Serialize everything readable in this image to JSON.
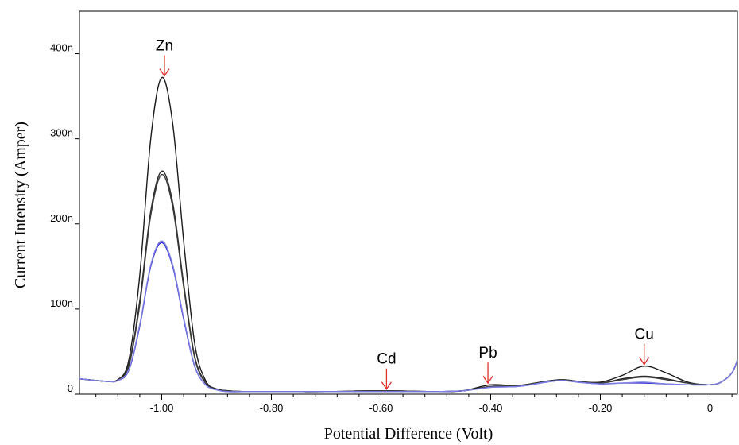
{
  "chart_data": {
    "type": "line",
    "title": "",
    "xlabel": "Potential Difference (Volt)",
    "ylabel": "Current Intensity (Amper)",
    "xlim": [
      -1.15,
      0.05
    ],
    "ylim": [
      0,
      450
    ],
    "x_ticks": [
      -1.0,
      -0.8,
      -0.6,
      -0.4,
      -0.2,
      0
    ],
    "x_tick_labels": [
      "-1.00",
      "-0.80",
      "-0.60",
      "-0.40",
      "-0.20",
      "0"
    ],
    "y_ticks": [
      0,
      100,
      200,
      300,
      400
    ],
    "y_tick_labels": [
      "0",
      "100n",
      "200n",
      "300n",
      "400n"
    ],
    "grid": false,
    "legend": "none",
    "x": [
      -1.15,
      -1.1,
      -1.08,
      -1.06,
      -1.04,
      -1.02,
      -1.0,
      -0.98,
      -0.96,
      -0.94,
      -0.92,
      -0.9,
      -0.88,
      -0.85,
      -0.8,
      -0.7,
      -0.6,
      -0.5,
      -0.45,
      -0.4,
      -0.35,
      -0.3,
      -0.27,
      -0.24,
      -0.2,
      -0.16,
      -0.12,
      -0.08,
      -0.04,
      0.0,
      0.02,
      0.04,
      0.05
    ],
    "series": [
      {
        "color": "#1a1a1a",
        "values": [
          18,
          15,
          17,
          40,
          140,
          300,
          372,
          318,
          180,
          60,
          16,
          6,
          4,
          3,
          3,
          3,
          4,
          3,
          4,
          11,
          10,
          15,
          17,
          15,
          14,
          22,
          33,
          25,
          14,
          11,
          14,
          25,
          40
        ]
      },
      {
        "color": "#2a2a2a",
        "values": [
          18,
          15,
          17,
          35,
          110,
          215,
          262,
          225,
          130,
          45,
          14,
          6,
          4,
          3,
          3,
          3,
          4,
          3,
          4,
          9,
          10,
          15,
          17,
          15,
          13,
          18,
          21,
          18,
          13,
          11,
          14,
          25,
          40
        ]
      },
      {
        "color": "#3a3a3a",
        "values": [
          18,
          15,
          17,
          33,
          105,
          210,
          258,
          220,
          126,
          43,
          13,
          6,
          4,
          3,
          3,
          3,
          4,
          3,
          4,
          9,
          10,
          15,
          17,
          15,
          13,
          17,
          20,
          17,
          13,
          11,
          14,
          25,
          40
        ]
      },
      {
        "color": "#3030d0",
        "values": [
          18,
          15,
          16,
          28,
          80,
          150,
          178,
          150,
          88,
          33,
          11,
          5,
          3,
          3,
          3,
          3,
          3,
          3,
          4,
          8,
          9,
          14,
          16,
          14,
          12,
          13,
          13,
          12,
          11,
          11,
          14,
          25,
          40
        ]
      },
      {
        "color": "#8080e0",
        "values": [
          18,
          15,
          16,
          29,
          82,
          152,
          180,
          152,
          90,
          34,
          11,
          5,
          3,
          3,
          3,
          3,
          3,
          3,
          4,
          8,
          9,
          14,
          16,
          14,
          12,
          13,
          14,
          12,
          11,
          11,
          14,
          25,
          40
        ]
      }
    ],
    "annotations": [
      {
        "label": "Zn",
        "x": -0.995,
        "y": 372
      },
      {
        "label": "Cd",
        "x": -0.59,
        "y": 4
      },
      {
        "label": "Pb",
        "x": -0.405,
        "y": 11
      },
      {
        "label": "Cu",
        "x": -0.12,
        "y": 33
      }
    ],
    "annotation_arrow_color": "#e03030"
  }
}
